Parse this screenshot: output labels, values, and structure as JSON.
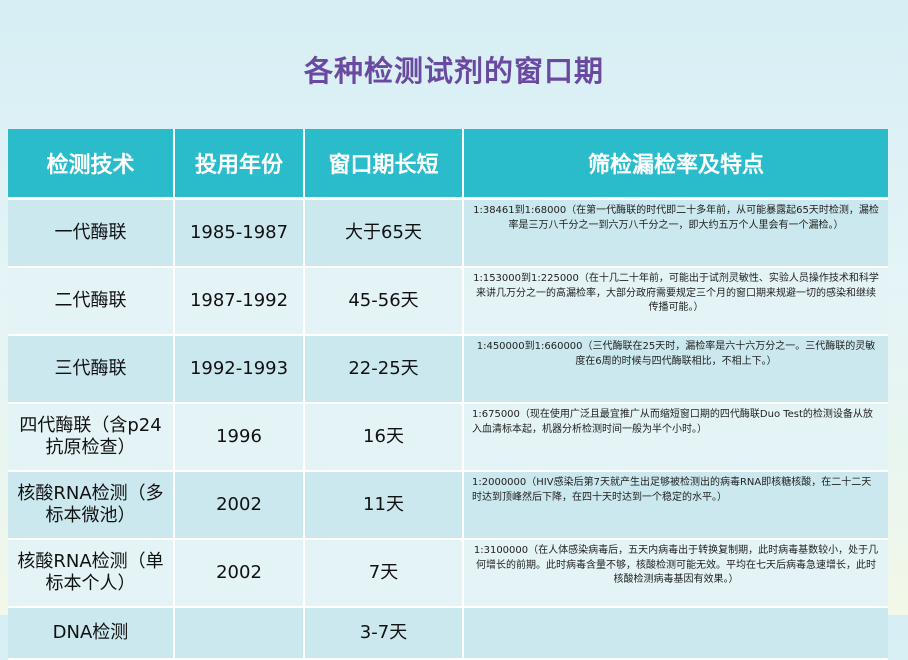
{
  "title": "各种检测试剂的窗口期",
  "headers": [
    "检测技术",
    "投用年份",
    "窗口期长短",
    "筛检漏检率及特点"
  ],
  "rows": [
    {
      "tech": "一代酶联",
      "year": "1985-1987",
      "window": "大于65天",
      "note": "1:38461到1:68000（在第一代酶联的时代即二十多年前，从可能暴露起65天时检测，漏检率是三万八千分之一到六万八千分之一，即大约五万个人里会有一个漏检。）"
    },
    {
      "tech": "二代酶联",
      "year": "1987-1992",
      "window": "45-56天",
      "note": "1:153000到1:225000（在十几二十年前，可能出于试剂灵敏性、实验人员操作技术和科学来讲几万分之一的高漏检率，大部分政府需要规定三个月的窗口期来规避一切的感染和继续传播可能。）"
    },
    {
      "tech": "三代酶联",
      "year": "1992-1993",
      "window": "22-25天",
      "note": "1:450000到1:660000（三代酶联在25天时，漏检率是六十六万分之一。三代酶联的灵敏度在6周的时候与四代酶联相比，不相上下。）"
    },
    {
      "tech": "四代酶联（含p24抗原检查）",
      "year": "1996",
      "window": "16天",
      "note": "1:675000（现在使用广泛且最宜推广从而缩短窗口期的四代酶联Duo Test的检测设备从放入血清标本起，机器分析检测时间一般为半个小时。）"
    },
    {
      "tech": "核酸RNA检测（多标本微池）",
      "year": "2002",
      "window": "11天",
      "note": "1:2000000（HIV感染后第7天就产生出足够被检测出的病毒RNA即核糖核酸，在二十二天时达到顶峰然后下降，在四十天时达到一个稳定的水平。）"
    },
    {
      "tech": "核酸RNA检测（单标本个人）",
      "year": "2002",
      "window": "7天",
      "note": "1:3100000（在人体感染病毒后，五天内病毒出于转换复制期，此时病毒基数较小，处于几何增长的前期。此时病毒含量不够，核酸检测可能无效。平均在七天后病毒急速增长，此时核酸检测病毒基因有效果。）"
    },
    {
      "tech": "DNA检测",
      "year": "",
      "window": "3-7天",
      "note": ""
    }
  ]
}
